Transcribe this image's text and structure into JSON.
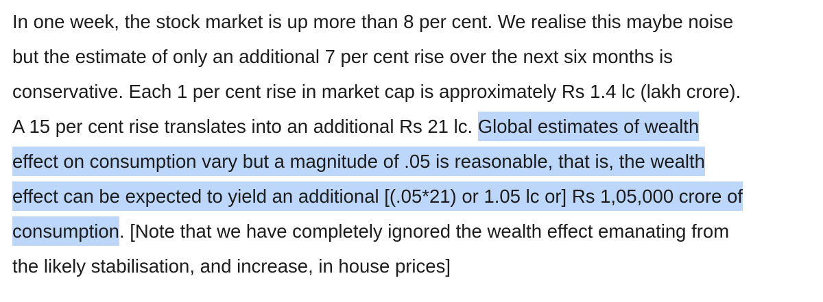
{
  "document": {
    "lines": [
      {
        "plain": "In one week, the stock market is up more than 8 per cent. We realise this maybe noise",
        "highlight": ""
      },
      {
        "plain": "but the estimate of only an additional 7 per cent rise over the next six months is",
        "highlight": ""
      },
      {
        "plain": "conservative. Each 1 per cent rise in market cap is approximately Rs 1.4 lc (lakh crore).",
        "highlight": ""
      },
      {
        "plain": "A 15 per cent rise translates into an additional Rs 21 lc. ",
        "highlight": "Global estimates of wealth"
      },
      {
        "plain": "",
        "highlight": "effect on consumption vary but a magnitude of .05 is reasonable, that is, the wealth"
      },
      {
        "plain": "",
        "highlight": "effect can be expected to yield an additional [(.05*21) or 1.05 lc or] Rs 1,05,000 crore of"
      },
      {
        "plain": ". [Note that we have completely ignored the wealth effect emanating from",
        "highlight": "consumption",
        "highlight_first": true
      },
      {
        "plain": "the likely stabilisation, and increase, in house prices]",
        "highlight": ""
      }
    ],
    "highlight_color": "#bdd7fb",
    "text_color": "#1c1c1c"
  }
}
